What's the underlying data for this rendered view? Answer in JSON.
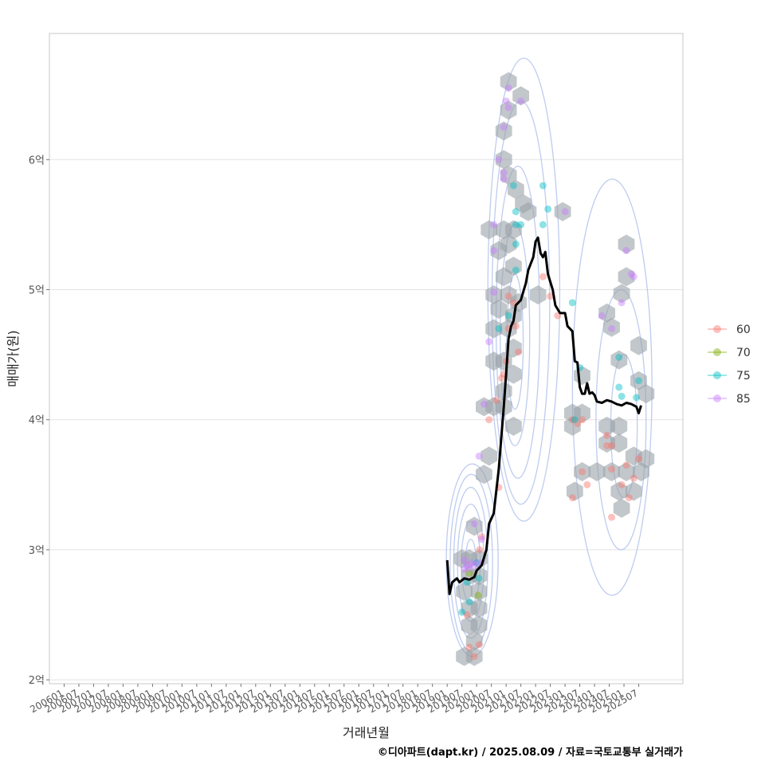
{
  "chart_data": {
    "type": "scatter",
    "xlabel": "거래년월",
    "ylabel": "매매가(원)",
    "credit": "©디아파트(dapt.kr) / 2025.08.09 / 자료=국토교통부 실거래가",
    "xlim": [
      2005.5,
      2027.0
    ],
    "ylim": [
      1.97,
      6.97
    ],
    "x_ticks": [
      {
        "v": 2006.0,
        "label": "200601"
      },
      {
        "v": 2006.5,
        "label": "200607"
      },
      {
        "v": 2007.0,
        "label": "200701"
      },
      {
        "v": 2007.5,
        "label": "200707"
      },
      {
        "v": 2008.0,
        "label": "200801"
      },
      {
        "v": 2008.5,
        "label": "200807"
      },
      {
        "v": 2009.0,
        "label": "200901"
      },
      {
        "v": 2009.5,
        "label": "200907"
      },
      {
        "v": 2010.0,
        "label": "201001"
      },
      {
        "v": 2010.5,
        "label": "201007"
      },
      {
        "v": 2011.0,
        "label": "201101"
      },
      {
        "v": 2011.5,
        "label": "201107"
      },
      {
        "v": 2012.0,
        "label": "201201"
      },
      {
        "v": 2012.5,
        "label": "201207"
      },
      {
        "v": 2013.0,
        "label": "201301"
      },
      {
        "v": 2013.5,
        "label": "201307"
      },
      {
        "v": 2014.0,
        "label": "201401"
      },
      {
        "v": 2014.5,
        "label": "201407"
      },
      {
        "v": 2015.0,
        "label": "201501"
      },
      {
        "v": 2015.5,
        "label": "201507"
      },
      {
        "v": 2016.0,
        "label": "201601"
      },
      {
        "v": 2016.5,
        "label": "201607"
      },
      {
        "v": 2017.0,
        "label": "201701"
      },
      {
        "v": 2017.5,
        "label": "201707"
      },
      {
        "v": 2018.0,
        "label": "201801"
      },
      {
        "v": 2018.5,
        "label": "201807"
      },
      {
        "v": 2019.0,
        "label": "201901"
      },
      {
        "v": 2019.5,
        "label": "201907"
      },
      {
        "v": 2020.0,
        "label": "202001"
      },
      {
        "v": 2020.5,
        "label": "202007"
      },
      {
        "v": 2021.0,
        "label": "202101"
      },
      {
        "v": 2021.5,
        "label": "202107"
      },
      {
        "v": 2022.0,
        "label": "202201"
      },
      {
        "v": 2022.5,
        "label": "202207"
      },
      {
        "v": 2023.0,
        "label": "202301"
      },
      {
        "v": 2023.5,
        "label": "202307"
      },
      {
        "v": 2024.0,
        "label": "202401"
      },
      {
        "v": 2024.5,
        "label": "202407"
      },
      {
        "v": 2025.0,
        "label": "202501"
      },
      {
        "v": 2025.5,
        "label": "202507"
      }
    ],
    "y_ticks": [
      {
        "v": 2,
        "label": "2억"
      },
      {
        "v": 3,
        "label": "3억"
      },
      {
        "v": 4,
        "label": "4억"
      },
      {
        "v": 5,
        "label": "5억"
      },
      {
        "v": 6,
        "label": "6억"
      }
    ],
    "legend": {
      "position": "right",
      "entries": [
        {
          "label": "60",
          "color": "#F8766D"
        },
        {
          "label": "70",
          "color": "#7CAE00"
        },
        {
          "label": "75",
          "color": "#00BFC4"
        },
        {
          "label": "85",
          "color": "#C77CFF"
        }
      ]
    },
    "series_line": {
      "name": "moving-average price",
      "color": "#000000",
      "points": [
        [
          2019.0,
          2.92
        ],
        [
          2019.08,
          2.66
        ],
        [
          2019.17,
          2.75
        ],
        [
          2019.33,
          2.78
        ],
        [
          2019.42,
          2.75
        ],
        [
          2019.58,
          2.78
        ],
        [
          2019.75,
          2.77
        ],
        [
          2019.92,
          2.79
        ],
        [
          2020.0,
          2.84
        ],
        [
          2020.17,
          2.88
        ],
        [
          2020.33,
          3.0
        ],
        [
          2020.42,
          3.2
        ],
        [
          2020.58,
          3.28
        ],
        [
          2020.75,
          3.62
        ],
        [
          2020.92,
          4.1
        ],
        [
          2021.0,
          4.35
        ],
        [
          2021.08,
          4.62
        ],
        [
          2021.17,
          4.72
        ],
        [
          2021.25,
          4.76
        ],
        [
          2021.33,
          4.88
        ],
        [
          2021.5,
          4.92
        ],
        [
          2021.67,
          5.05
        ],
        [
          2021.75,
          5.15
        ],
        [
          2021.92,
          5.25
        ],
        [
          2022.0,
          5.37
        ],
        [
          2022.08,
          5.4
        ],
        [
          2022.17,
          5.28
        ],
        [
          2022.25,
          5.25
        ],
        [
          2022.33,
          5.29
        ],
        [
          2022.42,
          5.12
        ],
        [
          2022.58,
          5.0
        ],
        [
          2022.67,
          4.88
        ],
        [
          2022.75,
          4.85
        ],
        [
          2022.83,
          4.82
        ],
        [
          2023.0,
          4.82
        ],
        [
          2023.08,
          4.72
        ],
        [
          2023.25,
          4.68
        ],
        [
          2023.33,
          4.45
        ],
        [
          2023.42,
          4.44
        ],
        [
          2023.5,
          4.25
        ],
        [
          2023.58,
          4.2
        ],
        [
          2023.67,
          4.2
        ],
        [
          2023.75,
          4.28
        ],
        [
          2023.83,
          4.2
        ],
        [
          2023.92,
          4.21
        ],
        [
          2024.0,
          4.19
        ],
        [
          2024.08,
          4.14
        ],
        [
          2024.25,
          4.13
        ],
        [
          2024.42,
          4.15
        ],
        [
          2024.58,
          4.14
        ],
        [
          2024.75,
          4.12
        ],
        [
          2024.92,
          4.11
        ],
        [
          2025.08,
          4.13
        ],
        [
          2025.25,
          4.12
        ],
        [
          2025.42,
          4.1
        ],
        [
          2025.5,
          4.05
        ],
        [
          2025.58,
          4.11
        ]
      ]
    },
    "hexbins": [
      [
        2021.08,
        6.6
      ],
      [
        2021.5,
        6.49
      ],
      [
        2021.08,
        6.38
      ],
      [
        2020.92,
        6.22
      ],
      [
        2020.92,
        6.0
      ],
      [
        2021.08,
        5.88
      ],
      [
        2021.33,
        5.77
      ],
      [
        2021.58,
        5.66
      ],
      [
        2020.42,
        5.46
      ],
      [
        2020.92,
        5.46
      ],
      [
        2021.25,
        5.46
      ],
      [
        2021.75,
        5.6
      ],
      [
        2022.92,
        5.6
      ],
      [
        2021.08,
        5.35
      ],
      [
        2020.75,
        5.3
      ],
      [
        2025.08,
        5.35
      ],
      [
        2020.92,
        5.1
      ],
      [
        2021.25,
        5.18
      ],
      [
        2025.08,
        5.1
      ],
      [
        2020.58,
        4.96
      ],
      [
        2021.08,
        4.96
      ],
      [
        2021.42,
        4.9
      ],
      [
        2022.08,
        4.96
      ],
      [
        2024.92,
        4.97
      ],
      [
        2020.75,
        4.85
      ],
      [
        2021.25,
        4.8
      ],
      [
        2020.58,
        4.7
      ],
      [
        2021.08,
        4.7
      ],
      [
        2024.42,
        4.82
      ],
      [
        2024.58,
        4.71
      ],
      [
        2021.25,
        4.55
      ],
      [
        2020.58,
        4.45
      ],
      [
        2020.92,
        4.45
      ],
      [
        2021.25,
        4.35
      ],
      [
        2024.83,
        4.46
      ],
      [
        2025.5,
        4.57
      ],
      [
        2023.58,
        4.34
      ],
      [
        2020.92,
        4.22
      ],
      [
        2020.25,
        4.1
      ],
      [
        2020.58,
        4.1
      ],
      [
        2020.92,
        4.1
      ],
      [
        2025.5,
        4.3
      ],
      [
        2025.75,
        4.2
      ],
      [
        2021.25,
        3.95
      ],
      [
        2023.25,
        4.05
      ],
      [
        2023.58,
        4.05
      ],
      [
        2023.25,
        3.95
      ],
      [
        2024.42,
        3.95
      ],
      [
        2024.83,
        3.95
      ],
      [
        2024.42,
        3.82
      ],
      [
        2024.83,
        3.82
      ],
      [
        2020.42,
        3.72
      ],
      [
        2025.33,
        3.72
      ],
      [
        2025.75,
        3.7
      ],
      [
        2020.25,
        3.58
      ],
      [
        2023.58,
        3.6
      ],
      [
        2024.08,
        3.6
      ],
      [
        2024.58,
        3.6
      ],
      [
        2025.08,
        3.6
      ],
      [
        2025.58,
        3.6
      ],
      [
        2023.33,
        3.45
      ],
      [
        2024.83,
        3.45
      ],
      [
        2025.33,
        3.45
      ],
      [
        2024.92,
        3.32
      ],
      [
        2019.92,
        3.18
      ],
      [
        2019.5,
        2.93
      ],
      [
        2019.75,
        2.93
      ],
      [
        2020.08,
        2.93
      ],
      [
        2019.75,
        2.8
      ],
      [
        2020.08,
        2.8
      ],
      [
        2019.58,
        2.68
      ],
      [
        2020.08,
        2.68
      ],
      [
        2019.75,
        2.55
      ],
      [
        2020.08,
        2.55
      ],
      [
        2019.75,
        2.42
      ],
      [
        2020.08,
        2.42
      ],
      [
        2019.92,
        2.3
      ],
      [
        2019.58,
        2.18
      ],
      [
        2019.92,
        2.18
      ]
    ],
    "points": [
      {
        "s": "60",
        "x": 2021.08,
        "y": 4.95
      },
      {
        "s": "60",
        "x": 2021.25,
        "y": 4.9
      },
      {
        "s": "60",
        "x": 2021.33,
        "y": 4.72
      },
      {
        "s": "60",
        "x": 2021.0,
        "y": 4.45
      },
      {
        "s": "60",
        "x": 2020.92,
        "y": 4.35
      },
      {
        "s": "60",
        "x": 2020.85,
        "y": 4.32
      },
      {
        "s": "60",
        "x": 2021.42,
        "y": 4.52
      },
      {
        "s": "60",
        "x": 2021.08,
        "y": 4.7
      },
      {
        "s": "60",
        "x": 2020.42,
        "y": 4.0
      },
      {
        "s": "60",
        "x": 2020.67,
        "y": 4.15
      },
      {
        "s": "60",
        "x": 2020.75,
        "y": 3.48
      },
      {
        "s": "60",
        "x": 2020.17,
        "y": 3.1
      },
      {
        "s": "60",
        "x": 2020.1,
        "y": 3.0
      },
      {
        "s": "60",
        "x": 2019.75,
        "y": 2.25
      },
      {
        "s": "60",
        "x": 2019.92,
        "y": 2.18
      },
      {
        "s": "60",
        "x": 2020.08,
        "y": 2.27
      },
      {
        "s": "60",
        "x": 2019.67,
        "y": 2.5
      },
      {
        "s": "60",
        "x": 2022.25,
        "y": 5.1
      },
      {
        "s": "60",
        "x": 2022.5,
        "y": 4.95
      },
      {
        "s": "60",
        "x": 2022.75,
        "y": 4.8
      },
      {
        "s": "60",
        "x": 2023.25,
        "y": 4.0
      },
      {
        "s": "60",
        "x": 2023.58,
        "y": 4.0
      },
      {
        "s": "60",
        "x": 2023.42,
        "y": 3.97
      },
      {
        "s": "60",
        "x": 2024.42,
        "y": 3.88
      },
      {
        "s": "60",
        "x": 2024.42,
        "y": 3.8
      },
      {
        "s": "60",
        "x": 2024.58,
        "y": 3.8
      },
      {
        "s": "60",
        "x": 2023.58,
        "y": 3.6
      },
      {
        "s": "60",
        "x": 2023.75,
        "y": 3.5
      },
      {
        "s": "60",
        "x": 2024.58,
        "y": 3.62
      },
      {
        "s": "60",
        "x": 2025.08,
        "y": 3.65
      },
      {
        "s": "60",
        "x": 2025.5,
        "y": 3.7
      },
      {
        "s": "60",
        "x": 2025.33,
        "y": 3.55
      },
      {
        "s": "60",
        "x": 2024.92,
        "y": 3.5
      },
      {
        "s": "60",
        "x": 2025.17,
        "y": 3.4
      },
      {
        "s": "60",
        "x": 2024.58,
        "y": 3.25
      },
      {
        "s": "60",
        "x": 2023.25,
        "y": 3.4
      },
      {
        "s": "70",
        "x": 2020.05,
        "y": 2.65
      },
      {
        "s": "70",
        "x": 2019.75,
        "y": 2.82
      },
      {
        "s": "75",
        "x": 2021.25,
        "y": 5.8
      },
      {
        "s": "75",
        "x": 2022.25,
        "y": 5.8
      },
      {
        "s": "75",
        "x": 2022.42,
        "y": 5.62
      },
      {
        "s": "75",
        "x": 2021.33,
        "y": 5.6
      },
      {
        "s": "75",
        "x": 2021.5,
        "y": 5.5
      },
      {
        "s": "75",
        "x": 2021.33,
        "y": 5.5
      },
      {
        "s": "75",
        "x": 2022.25,
        "y": 5.5
      },
      {
        "s": "75",
        "x": 2021.33,
        "y": 5.35
      },
      {
        "s": "75",
        "x": 2021.33,
        "y": 5.15
      },
      {
        "s": "75",
        "x": 2021.08,
        "y": 4.8
      },
      {
        "s": "75",
        "x": 2020.75,
        "y": 4.7
      },
      {
        "s": "75",
        "x": 2023.25,
        "y": 4.9
      },
      {
        "s": "75",
        "x": 2024.83,
        "y": 4.48
      },
      {
        "s": "75",
        "x": 2024.83,
        "y": 4.25
      },
      {
        "s": "75",
        "x": 2024.92,
        "y": 4.18
      },
      {
        "s": "75",
        "x": 2025.5,
        "y": 4.3
      },
      {
        "s": "75",
        "x": 2025.42,
        "y": 4.17
      },
      {
        "s": "75",
        "x": 2023.5,
        "y": 4.4
      },
      {
        "s": "75",
        "x": 2023.33,
        "y": 4.0
      },
      {
        "s": "75",
        "x": 2019.67,
        "y": 2.75
      },
      {
        "s": "75",
        "x": 2019.75,
        "y": 2.6
      },
      {
        "s": "75",
        "x": 2019.5,
        "y": 2.52
      },
      {
        "s": "75",
        "x": 2020.0,
        "y": 2.9
      },
      {
        "s": "75",
        "x": 2020.08,
        "y": 2.78
      },
      {
        "s": "85",
        "x": 2021.08,
        "y": 6.55
      },
      {
        "s": "85",
        "x": 2021.0,
        "y": 6.45
      },
      {
        "s": "85",
        "x": 2021.5,
        "y": 6.45
      },
      {
        "s": "85",
        "x": 2021.08,
        "y": 6.4
      },
      {
        "s": "85",
        "x": 2020.92,
        "y": 6.25
      },
      {
        "s": "85",
        "x": 2020.75,
        "y": 6.0
      },
      {
        "s": "85",
        "x": 2020.92,
        "y": 5.9
      },
      {
        "s": "85",
        "x": 2020.92,
        "y": 5.85
      },
      {
        "s": "85",
        "x": 2020.58,
        "y": 5.5
      },
      {
        "s": "85",
        "x": 2020.58,
        "y": 5.3
      },
      {
        "s": "85",
        "x": 2023.0,
        "y": 5.6
      },
      {
        "s": "85",
        "x": 2025.08,
        "y": 5.3
      },
      {
        "s": "85",
        "x": 2025.25,
        "y": 5.12
      },
      {
        "s": "85",
        "x": 2025.33,
        "y": 5.1
      },
      {
        "s": "85",
        "x": 2024.92,
        "y": 4.9
      },
      {
        "s": "85",
        "x": 2024.25,
        "y": 4.8
      },
      {
        "s": "85",
        "x": 2024.58,
        "y": 4.7
      },
      {
        "s": "85",
        "x": 2020.58,
        "y": 4.98
      },
      {
        "s": "85",
        "x": 2020.42,
        "y": 4.6
      },
      {
        "s": "85",
        "x": 2020.25,
        "y": 4.12
      },
      {
        "s": "85",
        "x": 2020.08,
        "y": 3.72
      },
      {
        "s": "85",
        "x": 2019.92,
        "y": 3.2
      },
      {
        "s": "85",
        "x": 2019.58,
        "y": 2.92
      },
      {
        "s": "85",
        "x": 2019.67,
        "y": 2.88
      },
      {
        "s": "85",
        "x": 2019.83,
        "y": 2.9
      },
      {
        "s": "85",
        "x": 2019.75,
        "y": 2.86
      },
      {
        "s": "85",
        "x": 2019.92,
        "y": 2.88
      },
      {
        "s": "85",
        "x": 2019.58,
        "y": 2.85
      },
      {
        "s": "85",
        "x": 2020.08,
        "y": 2.9
      },
      {
        "s": "85",
        "x": 2020.17,
        "y": 3.08
      }
    ],
    "density_contours": {
      "color": "#B3C3EC",
      "levels": [
        {
          "cx": 2019.8,
          "cy": 2.9,
          "rx": 0.18,
          "ry": 0.18
        },
        {
          "cx": 2019.8,
          "cy": 2.9,
          "rx": 0.32,
          "ry": 0.32
        },
        {
          "cx": 2019.8,
          "cy": 2.9,
          "rx": 0.45,
          "ry": 0.45
        },
        {
          "cx": 2019.8,
          "cy": 2.9,
          "rx": 0.58,
          "ry": 0.58
        },
        {
          "cx": 2019.82,
          "cy": 2.9,
          "rx": 0.72,
          "ry": 0.68
        },
        {
          "cx": 2019.85,
          "cy": 2.92,
          "rx": 0.88,
          "ry": 0.74
        },
        {
          "cx": 2021.3,
          "cy": 4.6,
          "rx": 0.28,
          "ry": 0.52
        },
        {
          "cx": 2021.3,
          "cy": 4.65,
          "rx": 0.5,
          "ry": 0.85
        },
        {
          "cx": 2021.4,
          "cy": 4.75,
          "rx": 0.74,
          "ry": 1.2
        },
        {
          "cx": 2021.5,
          "cy": 4.9,
          "rx": 0.98,
          "ry": 1.55
        },
        {
          "cx": 2021.6,
          "cy": 5.0,
          "rx": 1.22,
          "ry": 1.78
        },
        {
          "cx": 2025.0,
          "cy": 3.95,
          "rx": 0.45,
          "ry": 0.55
        },
        {
          "cx": 2024.9,
          "cy": 4.0,
          "rx": 0.85,
          "ry": 1.0
        },
        {
          "cx": 2024.6,
          "cy": 4.25,
          "rx": 1.35,
          "ry": 1.6
        }
      ]
    }
  }
}
